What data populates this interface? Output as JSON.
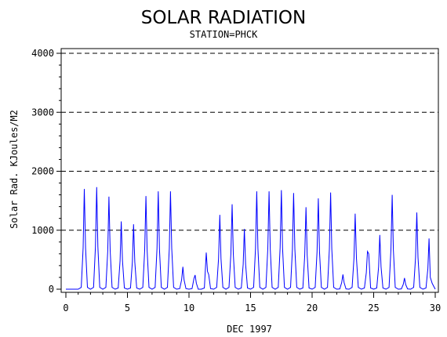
{
  "chart_data": {
    "type": "line",
    "title": "SOLAR RADIATION",
    "subtitle": "STATION=PHCK",
    "xlabel": "DEC 1997",
    "ylabel": "Solar Rad. KJoules/M2",
    "xlim": [
      0,
      30
    ],
    "ylim": [
      0,
      4000
    ],
    "xticks": [
      0,
      5,
      10,
      15,
      20,
      25,
      30
    ],
    "yticks": [
      0,
      1000,
      2000,
      3000,
      4000
    ],
    "grid": "horizontal dashed",
    "colors": {
      "series": "#0000ff",
      "axis": "#000000",
      "grid": "#000000"
    },
    "series": [
      {
        "x": [
          0.0,
          0.25,
          0.5,
          0.75,
          1.0,
          1.25,
          1.4,
          1.5,
          1.6,
          1.75,
          2.0,
          2.25,
          2.4,
          2.5,
          2.6,
          2.75,
          3.0,
          3.25,
          3.4,
          3.5,
          3.6,
          3.75,
          4.0,
          4.25,
          4.4,
          4.5,
          4.6,
          4.75,
          5.0,
          5.25,
          5.4,
          5.5,
          5.6,
          5.75,
          6.0,
          6.25,
          6.4,
          6.5,
          6.6,
          6.75,
          7.0,
          7.25,
          7.4,
          7.5,
          7.6,
          7.75,
          8.0,
          8.25,
          8.4,
          8.5,
          8.6,
          8.75,
          9.0,
          9.25,
          9.4,
          9.5,
          9.6,
          9.75,
          10.0,
          10.25,
          10.4,
          10.5,
          10.6,
          10.75,
          11.0,
          11.25,
          11.4,
          11.5,
          11.6,
          11.75,
          12.0,
          12.25,
          12.4,
          12.5,
          12.6,
          12.75,
          13.0,
          13.25,
          13.4,
          13.5,
          13.6,
          13.75,
          14.0,
          14.25,
          14.4,
          14.5,
          14.6,
          14.75,
          15.0,
          15.25,
          15.4,
          15.5,
          15.6,
          15.75,
          16.0,
          16.25,
          16.4,
          16.5,
          16.6,
          16.75,
          17.0,
          17.25,
          17.4,
          17.5,
          17.6,
          17.75,
          18.0,
          18.25,
          18.4,
          18.5,
          18.6,
          18.75,
          19.0,
          19.25,
          19.4,
          19.5,
          19.6,
          19.75,
          20.0,
          20.25,
          20.4,
          20.5,
          20.6,
          20.75,
          21.0,
          21.25,
          21.4,
          21.5,
          21.6,
          21.75,
          22.0,
          22.25,
          22.4,
          22.5,
          22.6,
          22.75,
          23.0,
          23.25,
          23.4,
          23.5,
          23.6,
          23.75,
          24.0,
          24.25,
          24.4,
          24.5,
          24.6,
          24.75,
          25.0,
          25.25,
          25.4,
          25.5,
          25.6,
          25.75,
          26.0,
          26.25,
          26.4,
          26.5,
          26.6,
          26.75,
          27.0,
          27.25,
          27.4,
          27.5,
          27.6,
          27.75,
          28.0,
          28.25,
          28.4,
          28.5,
          28.6,
          28.75,
          29.0,
          29.25,
          29.4,
          29.5,
          29.6,
          29.75,
          30.0
        ],
        "values": [
          0,
          0,
          0,
          0,
          0,
          30,
          700,
          1700,
          700,
          30,
          0,
          30,
          720,
          1730,
          720,
          30,
          0,
          30,
          650,
          1570,
          650,
          30,
          0,
          20,
          480,
          1150,
          480,
          20,
          0,
          20,
          460,
          1100,
          460,
          20,
          0,
          30,
          660,
          1580,
          660,
          30,
          0,
          30,
          690,
          1660,
          690,
          30,
          0,
          30,
          690,
          1660,
          690,
          30,
          0,
          10,
          160,
          380,
          160,
          10,
          0,
          10,
          180,
          240,
          100,
          0,
          0,
          20,
          620,
          300,
          250,
          10,
          0,
          30,
          520,
          1260,
          520,
          30,
          0,
          30,
          600,
          1440,
          600,
          30,
          0,
          20,
          420,
          1020,
          420,
          20,
          0,
          30,
          690,
          1660,
          690,
          30,
          0,
          30,
          690,
          1660,
          690,
          30,
          0,
          30,
          700,
          1680,
          700,
          30,
          0,
          30,
          680,
          1630,
          680,
          30,
          0,
          20,
          580,
          1390,
          580,
          20,
          0,
          30,
          640,
          1540,
          640,
          30,
          0,
          30,
          680,
          1640,
          680,
          30,
          0,
          5,
          110,
          250,
          110,
          5,
          0,
          30,
          530,
          1280,
          530,
          30,
          0,
          20,
          280,
          640,
          600,
          20,
          0,
          20,
          380,
          920,
          380,
          20,
          0,
          30,
          670,
          1600,
          670,
          30,
          0,
          5,
          80,
          190,
          80,
          5,
          0,
          30,
          540,
          1300,
          540,
          30,
          0,
          20,
          350,
          860,
          200,
          100,
          0
        ]
      }
    ]
  }
}
